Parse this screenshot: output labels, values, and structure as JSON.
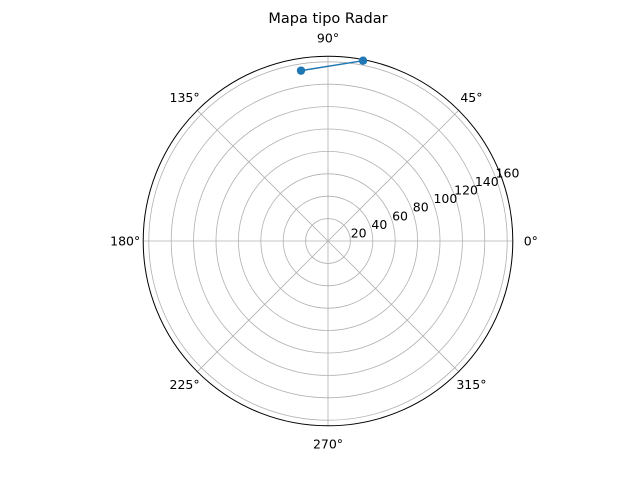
{
  "chart_data": {
    "type": "scatter",
    "projection": "polar",
    "title": "Mapa tipo Radar",
    "theta_tick_labels": [
      "0°",
      "45°",
      "90°",
      "135°",
      "180°",
      "225°",
      "270°",
      "315°"
    ],
    "theta_ticks_deg": [
      0,
      45,
      90,
      135,
      180,
      225,
      270,
      315
    ],
    "r_tick_labels": [
      "20",
      "40",
      "60",
      "80",
      "100",
      "120",
      "140",
      "160"
    ],
    "r_ticks": [
      20,
      40,
      60,
      80,
      100,
      120,
      140,
      160
    ],
    "rlim": [
      0,
      165
    ],
    "r_label_position_deg": 22.5,
    "grid": true,
    "series": [
      {
        "color": "#1f77b4",
        "marker": "circle",
        "line": true,
        "points": [
          {
            "theta_deg": 99,
            "r": 154
          },
          {
            "theta_deg": 79,
            "r": 164
          }
        ]
      }
    ]
  }
}
